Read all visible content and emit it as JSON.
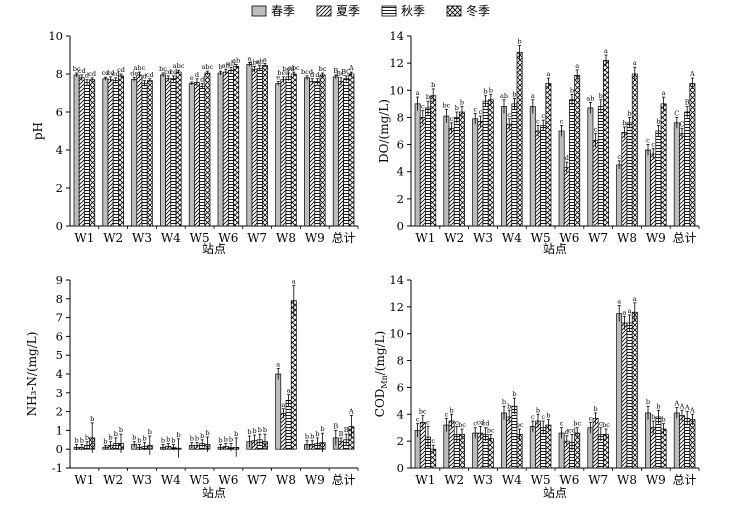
{
  "legend": {
    "items": [
      {
        "label": "春季",
        "pattern": "spring"
      },
      {
        "label": "夏季",
        "pattern": "summer"
      },
      {
        "label": "秋季",
        "pattern": "autumn"
      },
      {
        "label": "冬季",
        "pattern": "winter"
      }
    ]
  },
  "chart_data": [
    {
      "type": "bar",
      "categories": [
        "W1",
        "W2",
        "W3",
        "W4",
        "W5",
        "W6",
        "W7",
        "W8",
        "W9",
        "总计"
      ],
      "ylabel": "pH",
      "xlabel": "站点",
      "ylim": [
        0,
        10
      ],
      "yticks": [
        0,
        2,
        4,
        6,
        8,
        10
      ],
      "series": [
        {
          "name": "春季",
          "values": [
            7.95,
            7.75,
            7.72,
            7.95,
            7.5,
            8.05,
            8.5,
            7.5,
            7.8,
            7.85
          ],
          "errors": [
            0.1,
            0.08,
            0.1,
            0.1,
            0.08,
            0.1,
            0.1,
            0.1,
            0.1,
            0.1
          ],
          "labels": [
            "bc",
            "cd",
            "de",
            "bc",
            "e",
            "b",
            "a",
            "e",
            "bcd",
            "B"
          ]
        },
        {
          "name": "夏季",
          "values": [
            7.8,
            7.7,
            7.95,
            7.75,
            7.55,
            8.1,
            8.25,
            7.7,
            7.6,
            7.6
          ],
          "errors": [
            0.15,
            0.15,
            0.15,
            0.15,
            0.2,
            0.15,
            0.15,
            0.15,
            0.15,
            0.2
          ],
          "labels": [
            "cd",
            "cd",
            "abc",
            "cd",
            "d",
            "ab",
            "abc",
            "bcd",
            "d",
            "BC"
          ]
        },
        {
          "name": "秋季",
          "values": [
            7.55,
            7.65,
            7.5,
            7.75,
            7.35,
            8.2,
            8.3,
            7.85,
            7.6,
            7.75
          ],
          "errors": [
            0.15,
            0.15,
            0.15,
            0.15,
            0.15,
            0.15,
            0.15,
            0.2,
            0.15,
            0.15
          ],
          "labels": [
            "d",
            "cd",
            "d",
            "cd",
            "d",
            "ab",
            "ab",
            "bcd",
            "d",
            "BC"
          ]
        },
        {
          "name": "冬季",
          "values": [
            7.7,
            7.9,
            7.65,
            8.1,
            8.05,
            8.4,
            8.45,
            8.0,
            7.95,
            8.0
          ],
          "errors": [
            0.1,
            0.1,
            0.1,
            0.1,
            0.1,
            0.1,
            0.1,
            0.1,
            0.1,
            0.1
          ],
          "labels": [
            "cd",
            "cd",
            "cd",
            "abc",
            "abc",
            "ab",
            "a",
            "abc",
            "bc",
            "A"
          ]
        }
      ]
    },
    {
      "type": "bar",
      "categories": [
        "W1",
        "W2",
        "W3",
        "W4",
        "W5",
        "W6",
        "W7",
        "W8",
        "W9",
        "总计"
      ],
      "ylabel": "DO/(mg/L)",
      "xlabel": "站点",
      "ylim": [
        0,
        14
      ],
      "yticks": [
        0,
        2,
        4,
        6,
        8,
        10,
        12,
        14
      ],
      "series": [
        {
          "name": "春季",
          "values": [
            9.0,
            8.1,
            7.9,
            8.8,
            8.8,
            7.0,
            8.7,
            4.5,
            5.6,
            7.6
          ],
          "errors": [
            0.5,
            0.5,
            0.4,
            0.5,
            0.5,
            0.4,
            0.4,
            0.3,
            0.4,
            0.4
          ],
          "labels": [
            "a",
            "bc",
            "c",
            "ab",
            "a",
            "c",
            "ab",
            "c",
            "c",
            "C"
          ]
        },
        {
          "name": "夏季",
          "values": [
            8.0,
            7.2,
            7.7,
            7.5,
            7.0,
            4.3,
            6.3,
            6.9,
            5.3,
            6.8
          ],
          "errors": [
            0.5,
            0.4,
            0.4,
            0.4,
            0.4,
            0.4,
            0.5,
            0.4,
            0.4,
            0.4
          ],
          "labels": [
            "c",
            "c",
            "c",
            "c",
            "c",
            "d",
            "c",
            "b",
            "c",
            "C"
          ]
        },
        {
          "name": "秋季",
          "values": [
            8.7,
            8.0,
            9.2,
            9.0,
            7.4,
            9.3,
            8.8,
            7.6,
            7.0,
            8.4
          ],
          "errors": [
            0.5,
            0.4,
            0.4,
            0.4,
            0.4,
            0.4,
            0.5,
            0.4,
            0.4,
            0.4
          ],
          "labels": [
            "b",
            "b",
            "b",
            "b",
            "c",
            "b",
            "b",
            "b",
            "b",
            "B"
          ]
        },
        {
          "name": "冬季",
          "values": [
            9.6,
            8.4,
            9.3,
            12.8,
            10.5,
            11.1,
            12.2,
            11.2,
            9.0,
            10.5
          ],
          "errors": [
            0.5,
            0.4,
            0.4,
            0.5,
            0.4,
            0.4,
            0.4,
            0.5,
            0.5,
            0.4
          ],
          "labels": [
            "b",
            "b",
            "b",
            "b",
            "a",
            "a",
            "a",
            "a",
            "a",
            "A"
          ]
        }
      ]
    },
    {
      "type": "bar",
      "categories": [
        "W1",
        "W2",
        "W3",
        "W4",
        "W5",
        "W6",
        "W7",
        "W8",
        "W9",
        "总计"
      ],
      "ylabel": "NH₃-N/(mg/L)",
      "xlabel": "站点",
      "ylim": [
        -1,
        9
      ],
      "yticks": [
        -1,
        0,
        1,
        2,
        3,
        4,
        5,
        6,
        7,
        8,
        9
      ],
      "series": [
        {
          "name": "春季",
          "values": [
            0.1,
            0.1,
            0.25,
            0.1,
            0.2,
            0.1,
            0.4,
            4.0,
            0.25,
            0.6
          ],
          "errors": [
            0.15,
            0.1,
            0.15,
            0.15,
            0.15,
            0.15,
            0.3,
            0.3,
            0.2,
            0.4
          ],
          "labels": [
            "b",
            "b",
            "b",
            "b",
            "b",
            "b",
            "b",
            "a",
            "b",
            "B"
          ]
        },
        {
          "name": "夏季",
          "values": [
            0.1,
            0.2,
            0.1,
            0.15,
            0.2,
            0.15,
            0.45,
            1.9,
            0.25,
            0.4
          ],
          "errors": [
            0.15,
            0.2,
            0.15,
            0.15,
            0.15,
            0.15,
            0.3,
            0.25,
            0.2,
            0.2
          ],
          "labels": [
            "b",
            "b",
            "b",
            "b",
            "b",
            "b",
            "b",
            "a",
            "b",
            "B"
          ]
        },
        {
          "name": "秋季",
          "values": [
            0.2,
            0.3,
            0.15,
            0.1,
            0.3,
            0.1,
            0.5,
            2.6,
            0.3,
            0.5
          ],
          "errors": [
            0.2,
            0.3,
            0.2,
            0.15,
            0.2,
            0.2,
            0.3,
            0.3,
            0.3,
            0.3
          ],
          "labels": [
            "b",
            "b",
            "b",
            "b",
            "b",
            "b",
            "b",
            "a",
            "b",
            "B"
          ]
        },
        {
          "name": "冬季",
          "values": [
            0.6,
            0.3,
            0.2,
            0.05,
            0.25,
            0.1,
            0.4,
            7.9,
            0.35,
            1.2
          ],
          "errors": [
            0.8,
            0.5,
            0.5,
            0.5,
            0.4,
            0.5,
            0.4,
            0.8,
            0.5,
            0.6
          ],
          "labels": [
            "b",
            "b",
            "b",
            "b",
            "b",
            "b",
            "b",
            "a",
            "b",
            "A"
          ]
        }
      ]
    },
    {
      "type": "bar",
      "categories": [
        "W1",
        "W2",
        "W3",
        "W4",
        "W5",
        "W6",
        "W7",
        "W8",
        "W9",
        "总计"
      ],
      "ylabel": "COD_Mn/(mg/L)",
      "xlabel": "站点",
      "ylim": [
        0,
        14
      ],
      "yticks": [
        0,
        2,
        4,
        6,
        8,
        10,
        12,
        14
      ],
      "series": [
        {
          "name": "春季",
          "values": [
            2.8,
            3.2,
            2.6,
            4.1,
            3.1,
            2.6,
            3.0,
            11.5,
            4.1,
            4.1
          ],
          "errors": [
            0.5,
            0.5,
            0.4,
            0.5,
            0.4,
            0.4,
            0.4,
            0.6,
            0.5,
            0.4
          ],
          "labels": [
            "c",
            "c",
            "c",
            "b",
            "c",
            "c",
            "c",
            "a",
            "b",
            "A"
          ]
        },
        {
          "name": "夏季",
          "values": [
            3.4,
            3.5,
            2.6,
            3.8,
            3.5,
            2.0,
            3.7,
            10.8,
            3.0,
            3.9
          ],
          "errors": [
            0.5,
            0.5,
            0.5,
            0.5,
            0.5,
            0.4,
            0.4,
            0.5,
            0.5,
            0.4
          ],
          "labels": [
            "bc",
            "b",
            "cd",
            "b",
            "b",
            "d",
            "b",
            "a",
            "b",
            "A"
          ]
        },
        {
          "name": "秋季",
          "values": [
            2.3,
            2.5,
            2.5,
            4.6,
            3.0,
            1.9,
            2.5,
            10.8,
            3.8,
            3.7
          ],
          "errors": [
            0.8,
            0.6,
            0.5,
            0.6,
            0.5,
            0.6,
            0.5,
            0.6,
            0.5,
            0.5
          ],
          "labels": [
            "c",
            "c",
            "cd",
            "b",
            "c",
            "cd",
            "c",
            "a",
            "b",
            "A"
          ]
        },
        {
          "name": "冬季",
          "values": [
            1.4,
            2.5,
            2.2,
            2.5,
            3.2,
            2.6,
            2.5,
            11.6,
            2.9,
            3.6
          ],
          "errors": [
            0.3,
            0.4,
            0.3,
            0.4,
            0.4,
            0.4,
            0.4,
            0.7,
            0.4,
            0.4
          ],
          "labels": [
            "c",
            "bc",
            "bc",
            "bc",
            "b",
            "bc",
            "bc",
            "a",
            "b",
            "A"
          ]
        }
      ]
    }
  ]
}
